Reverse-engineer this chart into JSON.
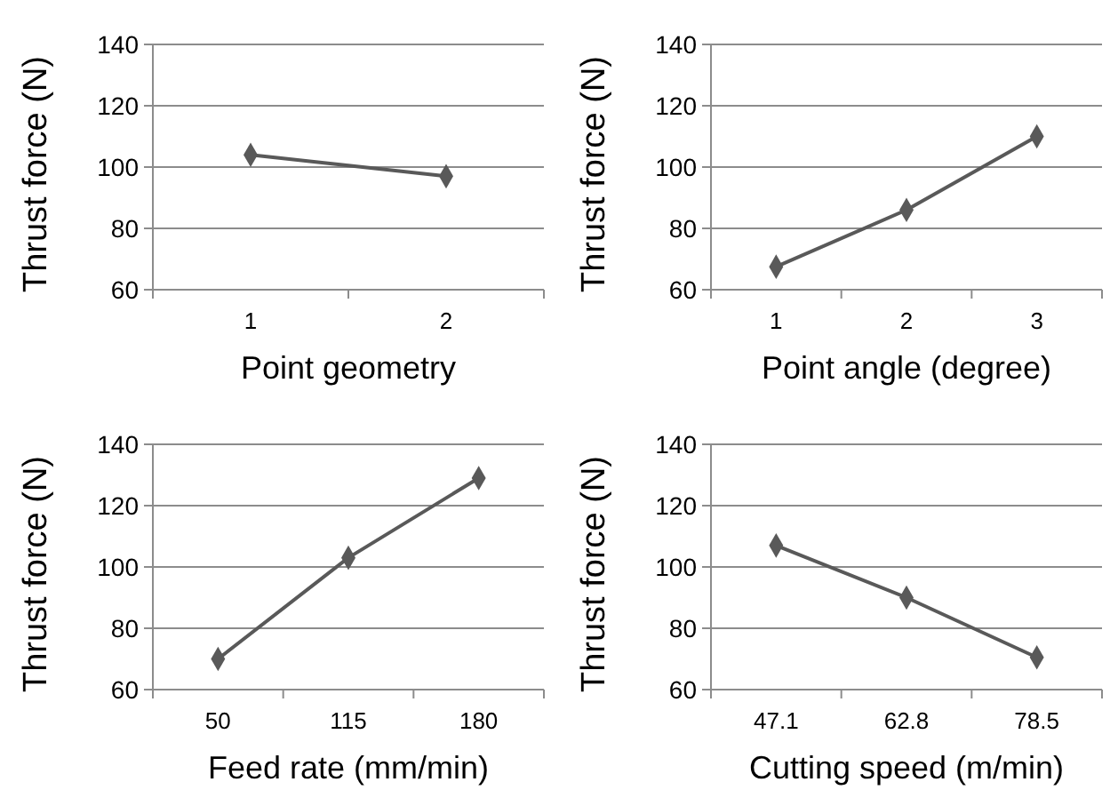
{
  "chart_data": [
    {
      "type": "line",
      "xlabel": "Point geometry",
      "ylabel": "Thrust force (N)",
      "categories": [
        "1",
        "2"
      ],
      "series": [
        {
          "color": "#595959",
          "values": [
            104,
            97
          ]
        }
      ],
      "ylim": [
        60,
        140
      ],
      "yticks": [
        60,
        80,
        100,
        120,
        140
      ],
      "grid": "y",
      "marker": "diamond",
      "line_style": "solid"
    },
    {
      "type": "line",
      "xlabel": "Point angle (degree)",
      "ylabel": "Thrust force (N)",
      "categories": [
        "1",
        "2",
        "3"
      ],
      "series": [
        {
          "color": "#595959",
          "values": [
            67.5,
            86,
            110
          ]
        }
      ],
      "ylim": [
        60,
        140
      ],
      "yticks": [
        60,
        80,
        100,
        120,
        140
      ],
      "grid": "y",
      "marker": "diamond",
      "line_style": "solid"
    },
    {
      "type": "line",
      "xlabel": "Feed rate (mm/min)",
      "ylabel": "Thrust force (N)",
      "categories": [
        "50",
        "115",
        "180"
      ],
      "series": [
        {
          "color": "#595959",
          "values": [
            70,
            103,
            129
          ]
        }
      ],
      "ylim": [
        60,
        140
      ],
      "yticks": [
        60,
        80,
        100,
        120,
        140
      ],
      "grid": "y",
      "marker": "diamond",
      "line_style": "solid"
    },
    {
      "type": "line",
      "xlabel": "Cutting speed (m/min)",
      "ylabel": "Thrust force (N)",
      "categories": [
        "47.1",
        "62.8",
        "78.5"
      ],
      "series": [
        {
          "color": "#595959",
          "values": [
            107,
            90,
            70.5
          ]
        }
      ],
      "ylim": [
        60,
        140
      ],
      "yticks": [
        60,
        80,
        100,
        120,
        140
      ],
      "grid": "y",
      "marker": "diamond",
      "line_style": "solid"
    }
  ]
}
